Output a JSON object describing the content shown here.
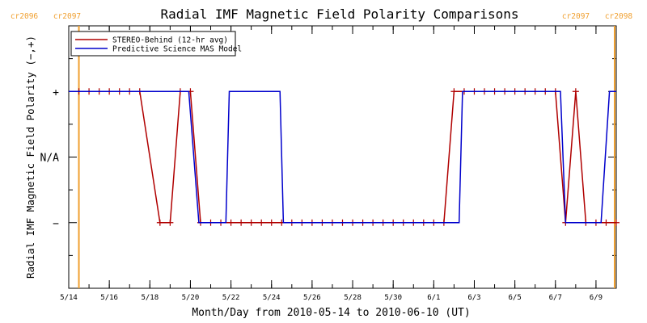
{
  "chart_data": {
    "type": "line",
    "title": "Radial IMF Magnetic Field Polarity Comparisons",
    "xlabel": "Month/Day from 2010-05-14 to 2010-06-10 (UT)",
    "ylabel": "Radial IMF Magnetic Field Polarity (−,+)",
    "x_unit": "date (2010, UT)",
    "xlim": [
      "2010-05-14T00:00",
      "2010-06-10T00:00"
    ],
    "x_tick_labels": [
      "5/14",
      "5/16",
      "5/18",
      "5/20",
      "5/22",
      "5/24",
      "5/26",
      "5/28",
      "5/30",
      "6/1",
      "6/3",
      "6/5",
      "6/7",
      "6/9"
    ],
    "x_tick_dates": [
      "2010-05-14",
      "2010-05-16",
      "2010-05-18",
      "2010-05-20",
      "2010-05-22",
      "2010-05-24",
      "2010-05-26",
      "2010-05-28",
      "2010-05-30",
      "2010-06-01",
      "2010-06-03",
      "2010-06-05",
      "2010-06-07",
      "2010-06-09"
    ],
    "y_categories": [
      "−",
      "N/A",
      "+"
    ],
    "y_category_values": [
      -1,
      0,
      1
    ],
    "ylim": [
      -2,
      2
    ],
    "legend_position": "top-left",
    "series": [
      {
        "name": "STEREO-Behind (12-hr avg)",
        "color": "#b00000",
        "marker": "+",
        "points": [
          {
            "x": "2010-05-14T12:00",
            "y": 1
          },
          {
            "x": "2010-05-15T00:00",
            "y": 1
          },
          {
            "x": "2010-05-15T12:00",
            "y": 1
          },
          {
            "x": "2010-05-16T00:00",
            "y": 1
          },
          {
            "x": "2010-05-16T12:00",
            "y": 1
          },
          {
            "x": "2010-05-17T00:00",
            "y": 1
          },
          {
            "x": "2010-05-17T12:00",
            "y": 1
          },
          {
            "x": "2010-05-18T12:00",
            "y": -1
          },
          {
            "x": "2010-05-19T00:00",
            "y": -1
          },
          {
            "x": "2010-05-19T12:00",
            "y": 1
          },
          {
            "x": "2010-05-20T00:00",
            "y": 1
          },
          {
            "x": "2010-05-20T12:00",
            "y": -1
          },
          {
            "x": "2010-05-21T00:00",
            "y": -1
          },
          {
            "x": "2010-05-21T12:00",
            "y": -1
          },
          {
            "x": "2010-05-22T00:00",
            "y": -1
          },
          {
            "x": "2010-05-22T12:00",
            "y": -1
          },
          {
            "x": "2010-05-23T00:00",
            "y": -1
          },
          {
            "x": "2010-05-23T12:00",
            "y": -1
          },
          {
            "x": "2010-05-24T00:00",
            "y": -1
          },
          {
            "x": "2010-05-24T12:00",
            "y": -1
          },
          {
            "x": "2010-05-25T00:00",
            "y": -1
          },
          {
            "x": "2010-05-25T12:00",
            "y": -1
          },
          {
            "x": "2010-05-26T00:00",
            "y": -1
          },
          {
            "x": "2010-05-26T12:00",
            "y": -1
          },
          {
            "x": "2010-05-27T00:00",
            "y": -1
          },
          {
            "x": "2010-05-27T12:00",
            "y": -1
          },
          {
            "x": "2010-05-28T00:00",
            "y": -1
          },
          {
            "x": "2010-05-28T12:00",
            "y": -1
          },
          {
            "x": "2010-05-29T00:00",
            "y": -1
          },
          {
            "x": "2010-05-29T12:00",
            "y": -1
          },
          {
            "x": "2010-05-30T00:00",
            "y": -1
          },
          {
            "x": "2010-05-30T12:00",
            "y": -1
          },
          {
            "x": "2010-05-31T00:00",
            "y": -1
          },
          {
            "x": "2010-05-31T12:00",
            "y": -1
          },
          {
            "x": "2010-06-01T00:00",
            "y": -1
          },
          {
            "x": "2010-06-01T12:00",
            "y": -1
          },
          {
            "x": "2010-06-02T00:00",
            "y": 1
          },
          {
            "x": "2010-06-02T12:00",
            "y": 1
          },
          {
            "x": "2010-06-03T00:00",
            "y": 1
          },
          {
            "x": "2010-06-03T12:00",
            "y": 1
          },
          {
            "x": "2010-06-04T00:00",
            "y": 1
          },
          {
            "x": "2010-06-04T12:00",
            "y": 1
          },
          {
            "x": "2010-06-05T00:00",
            "y": 1
          },
          {
            "x": "2010-06-05T12:00",
            "y": 1
          },
          {
            "x": "2010-06-06T00:00",
            "y": 1
          },
          {
            "x": "2010-06-06T12:00",
            "y": 1
          },
          {
            "x": "2010-06-07T00:00",
            "y": 1
          },
          {
            "x": "2010-06-07T12:00",
            "y": -1
          },
          {
            "x": "2010-06-08T00:00",
            "y": 1
          },
          {
            "x": "2010-06-08T12:00",
            "y": -1
          },
          {
            "x": "2010-06-09T00:00",
            "y": -1
          },
          {
            "x": "2010-06-09T12:00",
            "y": -1
          },
          {
            "x": "2010-06-10T00:00",
            "y": -1
          }
        ]
      },
      {
        "name": "Predictive Science MAS Model",
        "color": "#0000cc",
        "marker": "none",
        "points": [
          {
            "x": "2010-05-14T00:00",
            "y": 1
          },
          {
            "x": "2010-05-19T22:00",
            "y": 1
          },
          {
            "x": "2010-05-20T10:00",
            "y": -1
          },
          {
            "x": "2010-05-21T18:00",
            "y": -1
          },
          {
            "x": "2010-05-21T22:00",
            "y": 1
          },
          {
            "x": "2010-05-24T10:00",
            "y": 1
          },
          {
            "x": "2010-05-24T14:00",
            "y": -1
          },
          {
            "x": "2010-06-02T06:00",
            "y": -1
          },
          {
            "x": "2010-06-02T10:00",
            "y": 1
          },
          {
            "x": "2010-06-07T06:00",
            "y": 1
          },
          {
            "x": "2010-06-07T12:00",
            "y": -1
          },
          {
            "x": "2010-06-09T06:00",
            "y": -1
          },
          {
            "x": "2010-06-09T16:00",
            "y": 1
          },
          {
            "x": "2010-06-10T00:00",
            "y": 1
          }
        ]
      }
    ],
    "vertical_markers": [
      {
        "x": "2010-05-14T12:00",
        "color": "#f0a030",
        "labels": [
          "cr2096",
          "cr2097"
        ],
        "label_side": "left"
      },
      {
        "x": "2010-06-10T00:00",
        "color": "#f0a030",
        "labels": [
          "cr2097",
          "cr2098"
        ],
        "label_side": "right"
      }
    ]
  }
}
